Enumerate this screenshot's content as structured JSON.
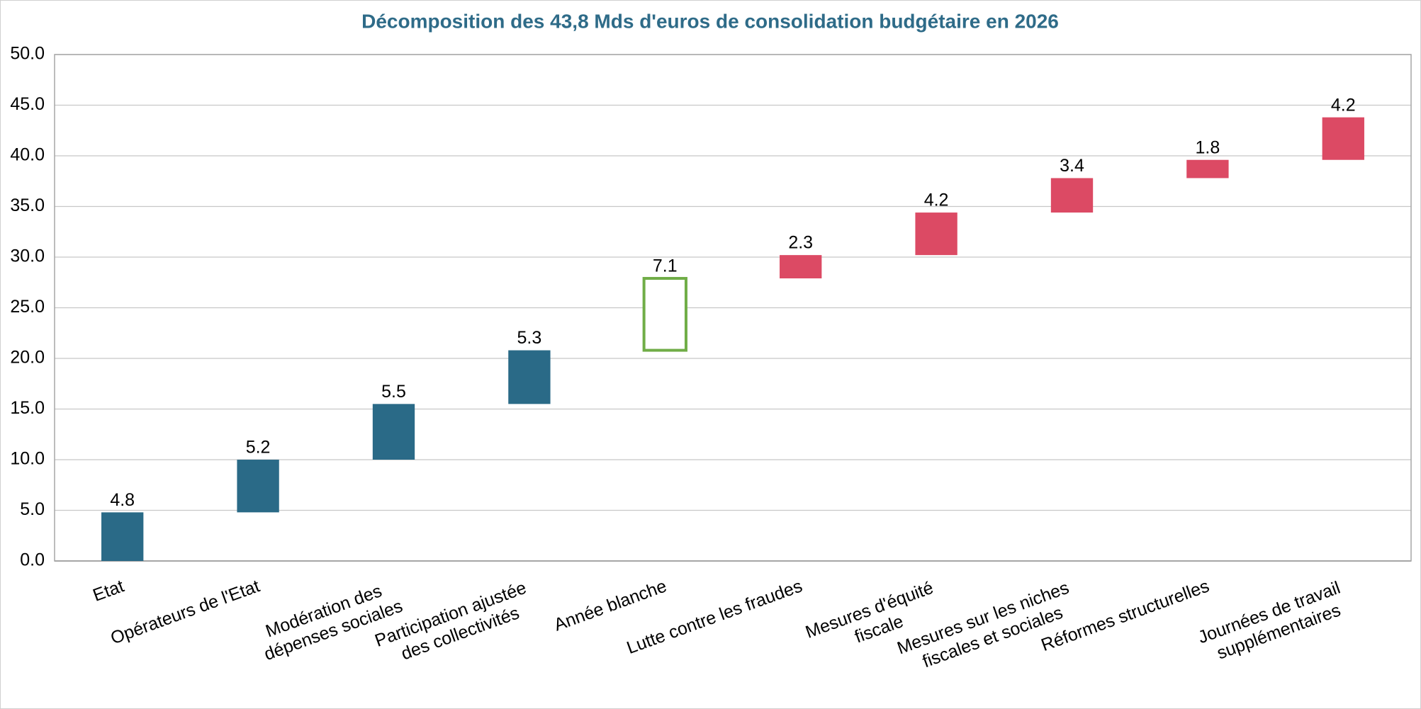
{
  "chart_data": {
    "type": "waterfall",
    "title": "Décomposition des 43,8 Mds d'euros de consolidation budgétaire en 2026",
    "categories": [
      "Etat",
      "Opérateurs de l'Etat",
      "Modération des\ndépenses sociales",
      "Participation ajustée\ndes collectivités",
      "Année blanche",
      "Lutte contre les fraudes",
      "Mesures d'équité\nfiscale",
      "Mesures sur les niches\nfiscales et sociales",
      "Réformes structurelles",
      "Journées de travail\nsupplémentaires"
    ],
    "values": [
      4.8,
      5.2,
      5.5,
      5.3,
      7.1,
      2.3,
      4.2,
      3.4,
      1.8,
      4.2
    ],
    "colors": [
      "#2a6a87",
      "#2a6a87",
      "#2a6a87",
      "#2a6a87",
      "#70ad47",
      "#dc4a64",
      "#dc4a64",
      "#dc4a64",
      "#dc4a64",
      "#dc4a64"
    ],
    "fill_styles": [
      "solid",
      "solid",
      "solid",
      "solid",
      "outline",
      "solid",
      "solid",
      "solid",
      "solid",
      "solid"
    ],
    "ylim": [
      0,
      50
    ],
    "yticks": [
      {
        "value": 0,
        "label": "0.0"
      },
      {
        "value": 5,
        "label": "5.0"
      },
      {
        "value": 10,
        "label": "10.0"
      },
      {
        "value": 15,
        "label": "15.0"
      },
      {
        "value": 20,
        "label": "20.0"
      },
      {
        "value": 25,
        "label": "25.0"
      },
      {
        "value": 30,
        "label": "30.0"
      },
      {
        "value": 35,
        "label": "35.0"
      },
      {
        "value": 40,
        "label": "40.0"
      },
      {
        "value": 45,
        "label": "45.0"
      },
      {
        "value": 50,
        "label": "50.0"
      }
    ],
    "grid": true
  }
}
